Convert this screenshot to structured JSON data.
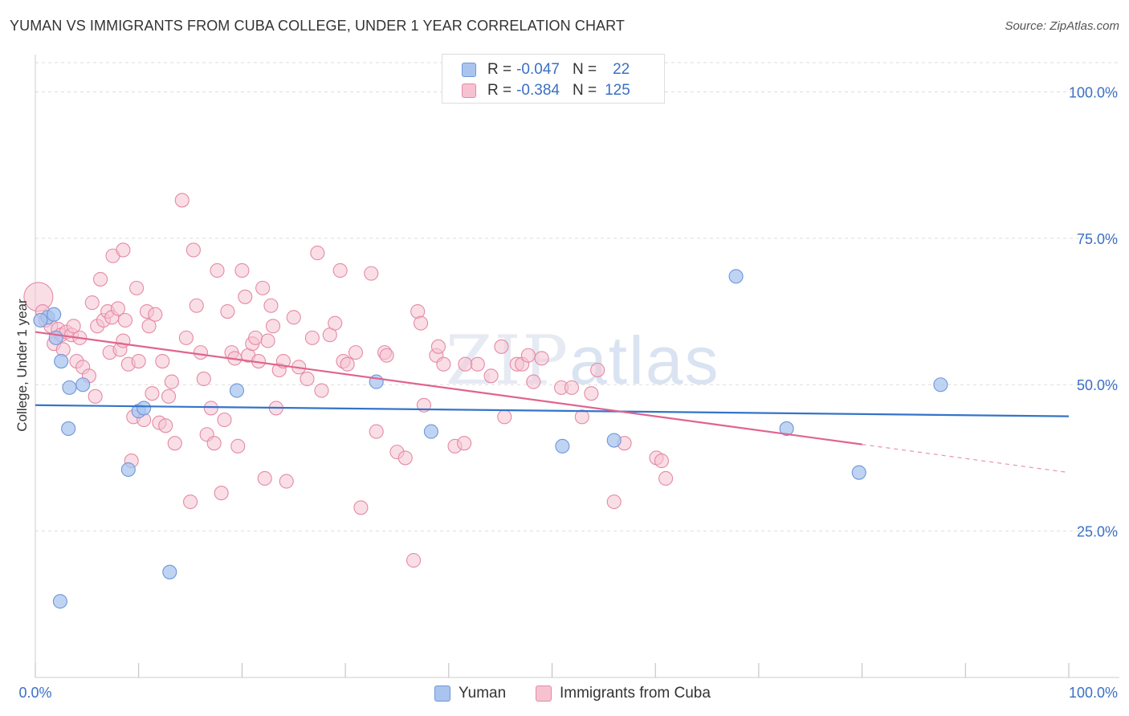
{
  "title": "YUMAN VS IMMIGRANTS FROM CUBA COLLEGE, UNDER 1 YEAR CORRELATION CHART",
  "source": "Source: ZipAtlas.com",
  "watermark": {
    "zip": "ZIP",
    "atlas": "atlas"
  },
  "legend_top": {
    "rows": [
      {
        "r_label": "R =",
        "r_value": "-0.047",
        "n_label": "N =",
        "n_value": "22",
        "color": "#a9c4ef",
        "border": "#6f97d8"
      },
      {
        "r_label": "R =",
        "r_value": "-0.384",
        "n_label": "N =",
        "n_value": "125",
        "color": "#f6c2d2",
        "border": "#e48aa6"
      }
    ]
  },
  "legend_bottom": [
    {
      "label": "Yuman",
      "color": "#a9c4ef",
      "border": "#6f97d8"
    },
    {
      "label": "Immigrants from Cuba",
      "color": "#f6c2d2",
      "border": "#e48aa6"
    }
  ],
  "chart_data": {
    "type": "scatter",
    "title": "YUMAN VS IMMIGRANTS FROM CUBA COLLEGE, UNDER 1 YEAR CORRELATION CHART",
    "xlabel": "",
    "ylabel": "College, Under 1 year",
    "xlim": [
      0,
      100
    ],
    "ylim": [
      0,
      105
    ],
    "x_tick_labels": [
      "0.0%",
      "100.0%"
    ],
    "y_ticks": [
      25,
      50,
      75,
      100
    ],
    "y_tick_labels": [
      "25.0%",
      "50.0%",
      "75.0%",
      "100.0%"
    ],
    "grid": true,
    "series": [
      {
        "name": "Yuman",
        "color": "#a9c4ef",
        "stroke": "#6f97d8",
        "line_color": "#3474c9",
        "trend": {
          "x0": 0,
          "y0": 46.5,
          "x1": 100,
          "y1": 44.6,
          "solid_to": 100
        },
        "points": [
          [
            1.2,
            61.5
          ],
          [
            1.8,
            62.0
          ],
          [
            2.0,
            58.0
          ],
          [
            2.5,
            54.0
          ],
          [
            3.2,
            42.5
          ],
          [
            3.3,
            49.5
          ],
          [
            4.6,
            50.0
          ],
          [
            9.0,
            35.5
          ],
          [
            10.0,
            45.5
          ],
          [
            10.5,
            46.0
          ],
          [
            13.0,
            18.0
          ],
          [
            2.4,
            13.0
          ],
          [
            19.5,
            49.0
          ],
          [
            33.0,
            50.5
          ],
          [
            38.3,
            42.0
          ],
          [
            51.0,
            39.5
          ],
          [
            56.0,
            40.5
          ],
          [
            67.8,
            68.5
          ],
          [
            72.7,
            42.5
          ],
          [
            79.7,
            35.0
          ],
          [
            87.6,
            50.0
          ],
          [
            0.5,
            61.0
          ]
        ]
      },
      {
        "name": "Immigrants from Cuba",
        "color": "#f6c2d2",
        "stroke": "#e48aa6",
        "line_color": "#e0648e",
        "trend": {
          "x0": 0,
          "y0": 59.0,
          "x1": 100,
          "y1": 35.0,
          "solid_to": 80
        },
        "points": [
          [
            0.3,
            65.0
          ],
          [
            0.7,
            62.5
          ],
          [
            1.0,
            61.0
          ],
          [
            1.5,
            60.0
          ],
          [
            1.8,
            57.0
          ],
          [
            2.2,
            59.5
          ],
          [
            2.5,
            58.5
          ],
          [
            2.7,
            56.0
          ],
          [
            3.0,
            59.0
          ],
          [
            3.5,
            58.5
          ],
          [
            3.7,
            60.0
          ],
          [
            4.0,
            54.0
          ],
          [
            4.3,
            58.0
          ],
          [
            4.6,
            53.0
          ],
          [
            5.2,
            51.5
          ],
          [
            5.5,
            64.0
          ],
          [
            5.8,
            48.0
          ],
          [
            6.0,
            60.0
          ],
          [
            6.3,
            68.0
          ],
          [
            6.6,
            61.0
          ],
          [
            7.0,
            62.5
          ],
          [
            7.2,
            55.5
          ],
          [
            7.4,
            61.5
          ],
          [
            7.5,
            72.0
          ],
          [
            8.0,
            63.0
          ],
          [
            8.2,
            56.0
          ],
          [
            8.5,
            73.0
          ],
          [
            8.7,
            61.0
          ],
          [
            9.0,
            53.5
          ],
          [
            9.3,
            37.0
          ],
          [
            9.5,
            44.5
          ],
          [
            9.8,
            66.5
          ],
          [
            10.0,
            54.0
          ],
          [
            10.5,
            44.0
          ],
          [
            10.8,
            62.5
          ],
          [
            11.0,
            60.0
          ],
          [
            11.3,
            48.5
          ],
          [
            11.6,
            62.0
          ],
          [
            12.0,
            43.5
          ],
          [
            12.3,
            54.0
          ],
          [
            12.6,
            43.0
          ],
          [
            12.9,
            48.0
          ],
          [
            13.2,
            50.5
          ],
          [
            13.5,
            40.0
          ],
          [
            14.2,
            81.5
          ],
          [
            14.6,
            58.0
          ],
          [
            15.0,
            30.0
          ],
          [
            15.3,
            73.0
          ],
          [
            15.6,
            63.5
          ],
          [
            16.0,
            55.5
          ],
          [
            16.3,
            51.0
          ],
          [
            16.6,
            41.5
          ],
          [
            17.0,
            46.0
          ],
          [
            17.3,
            40.0
          ],
          [
            17.6,
            69.5
          ],
          [
            18.0,
            31.5
          ],
          [
            18.3,
            44.0
          ],
          [
            18.6,
            62.5
          ],
          [
            19.0,
            55.5
          ],
          [
            19.3,
            54.5
          ],
          [
            19.6,
            39.5
          ],
          [
            20.0,
            69.5
          ],
          [
            20.3,
            65.0
          ],
          [
            20.6,
            55.0
          ],
          [
            21.0,
            57.0
          ],
          [
            21.3,
            58.0
          ],
          [
            21.6,
            54.0
          ],
          [
            22.0,
            66.5
          ],
          [
            22.2,
            34.0
          ],
          [
            22.5,
            57.5
          ],
          [
            22.8,
            63.5
          ],
          [
            23.0,
            60.0
          ],
          [
            23.3,
            46.0
          ],
          [
            23.6,
            52.5
          ],
          [
            24.0,
            54.0
          ],
          [
            24.3,
            33.5
          ],
          [
            25.0,
            61.5
          ],
          [
            25.5,
            53.0
          ],
          [
            26.3,
            51.0
          ],
          [
            26.8,
            58.0
          ],
          [
            27.3,
            72.5
          ],
          [
            27.7,
            49.0
          ],
          [
            28.5,
            58.5
          ],
          [
            29.0,
            60.5
          ],
          [
            29.5,
            69.5
          ],
          [
            29.8,
            54.0
          ],
          [
            30.2,
            53.5
          ],
          [
            31.0,
            55.5
          ],
          [
            31.5,
            29.0
          ],
          [
            32.5,
            69.0
          ],
          [
            33.0,
            42.0
          ],
          [
            33.8,
            55.5
          ],
          [
            34.0,
            55.0
          ],
          [
            35.0,
            38.5
          ],
          [
            35.8,
            37.5
          ],
          [
            37.0,
            62.5
          ],
          [
            37.3,
            60.5
          ],
          [
            37.6,
            46.5
          ],
          [
            38.8,
            55.0
          ],
          [
            39.0,
            56.5
          ],
          [
            39.5,
            53.5
          ],
          [
            40.6,
            39.5
          ],
          [
            41.6,
            53.5
          ],
          [
            42.8,
            53.5
          ],
          [
            44.1,
            51.5
          ],
          [
            45.1,
            56.5
          ],
          [
            45.4,
            44.5
          ],
          [
            46.6,
            53.5
          ],
          [
            47.1,
            53.5
          ],
          [
            47.7,
            55.0
          ],
          [
            48.2,
            50.5
          ],
          [
            49.0,
            54.5
          ],
          [
            50.9,
            49.5
          ],
          [
            51.9,
            49.5
          ],
          [
            52.9,
            44.5
          ],
          [
            53.8,
            48.5
          ],
          [
            54.4,
            52.5
          ],
          [
            57.0,
            40.0
          ],
          [
            60.1,
            37.5
          ],
          [
            60.6,
            37.0
          ],
          [
            61.0,
            34.0
          ],
          [
            56.0,
            30.0
          ],
          [
            36.6,
            20.0
          ],
          [
            8.5,
            57.5
          ],
          [
            41.5,
            40.0
          ]
        ]
      }
    ]
  }
}
